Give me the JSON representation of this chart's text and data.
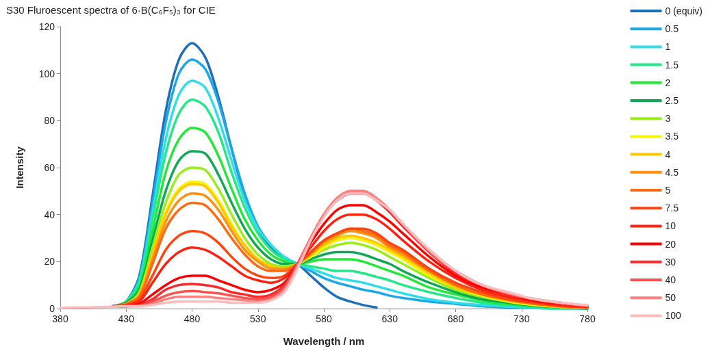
{
  "chart_data": {
    "type": "line",
    "title": "S30 Fluroescent spectra of 6·B(C₆F₅)₃ for CIE",
    "xlabel": "Wavelength / nm",
    "ylabel": "Intensity",
    "x": [
      380,
      400,
      420,
      430,
      440,
      450,
      460,
      470,
      480,
      490,
      500,
      510,
      520,
      530,
      540,
      550,
      560,
      570,
      580,
      590,
      600,
      610,
      620,
      630,
      640,
      660,
      680,
      700,
      720,
      740,
      760,
      780
    ],
    "xlim": [
      380,
      780
    ],
    "xticks": [
      380,
      430,
      480,
      530,
      580,
      630,
      680,
      730,
      780
    ],
    "ylim": [
      0,
      120
    ],
    "yticks": [
      0,
      20,
      40,
      60,
      80,
      100,
      120
    ],
    "legend": "right",
    "marker": "none",
    "line_style": "solid",
    "series": [
      {
        "name": "0 (equiv)",
        "color": "#1f6fb8",
        "values": [
          null,
          null,
          1,
          3,
          14,
          48,
          84,
          106,
          113,
          107,
          90,
          68,
          48,
          34,
          26,
          21,
          19,
          14,
          9,
          5,
          3,
          1.5,
          0.5,
          null,
          null,
          null,
          null,
          null,
          null,
          null,
          null,
          null
        ]
      },
      {
        "name": "0.5",
        "color": "#1ca8e8",
        "values": [
          null,
          null,
          1,
          3,
          13,
          45,
          79,
          100,
          106,
          102,
          88,
          68,
          49,
          35,
          27,
          22,
          19,
          16,
          13,
          11,
          9.5,
          8,
          7,
          5.5,
          4.5,
          3,
          2,
          1,
          0.5,
          0.2,
          0,
          0
        ]
      },
      {
        "name": "1",
        "color": "#30dde8",
        "values": [
          null,
          null,
          1,
          3,
          12,
          41,
          72,
          91,
          97,
          94,
          81,
          63,
          46,
          34,
          27,
          22,
          19,
          17,
          15,
          13,
          12,
          11,
          9.5,
          8,
          6.5,
          4,
          2.5,
          1.5,
          0.8,
          0.3,
          0,
          0
        ]
      },
      {
        "name": "1.5",
        "color": "#22e888",
        "values": [
          null,
          null,
          1,
          3,
          11,
          38,
          66,
          83,
          89,
          86,
          75,
          58,
          43,
          32,
          25,
          21,
          19,
          18,
          17,
          16,
          16,
          15,
          13.5,
          12,
          10,
          7,
          4.5,
          2.5,
          1.5,
          0.8,
          0.3,
          0
        ]
      },
      {
        "name": "2",
        "color": "#22e838",
        "values": [
          null,
          null,
          1,
          2.5,
          9,
          33,
          58,
          72,
          77,
          75,
          65,
          51,
          38,
          29,
          23,
          20,
          19,
          20,
          21,
          21,
          21,
          20,
          18,
          16,
          14,
          9,
          6,
          3.5,
          2,
          1,
          0.5,
          0
        ]
      },
      {
        "name": "2.5",
        "color": "#10a855",
        "values": [
          null,
          null,
          1,
          2.5,
          8,
          29,
          50,
          63,
          67,
          66,
          57,
          45,
          34,
          26,
          21,
          19,
          19,
          21,
          23,
          24,
          24,
          23,
          21,
          19,
          16,
          11,
          7,
          4,
          2.5,
          1.2,
          0.5,
          0
        ]
      },
      {
        "name": "3",
        "color": "#98ee18",
        "values": [
          null,
          null,
          1,
          2,
          7,
          26,
          45,
          57,
          60,
          59,
          51,
          40,
          30,
          23,
          19,
          18,
          19,
          22,
          25,
          27,
          28,
          27,
          25,
          22,
          19,
          13,
          8,
          5,
          3,
          1.5,
          0.6,
          0.2
        ]
      },
      {
        "name": "3.5",
        "color": "#f5f50a",
        "values": [
          null,
          null,
          1,
          2,
          6,
          23,
          41,
          51,
          54,
          53,
          46,
          36,
          27,
          21,
          18,
          17,
          19,
          22,
          26,
          29,
          30,
          29,
          27,
          24,
          21,
          14,
          9,
          5.5,
          3,
          1.5,
          0.7,
          0.2
        ]
      },
      {
        "name": "4",
        "color": "#ffc800",
        "values": [
          null,
          null,
          1,
          2,
          6,
          23,
          40,
          50,
          53,
          52,
          45,
          35,
          27,
          21,
          18,
          17,
          19,
          23,
          27,
          30,
          31,
          30,
          28,
          25,
          22,
          15,
          9,
          6,
          3.5,
          2,
          0.8,
          0.3
        ]
      },
      {
        "name": "4.5",
        "color": "#ff9010",
        "values": [
          null,
          null,
          1,
          2,
          5.5,
          21,
          37,
          46,
          49,
          48,
          42,
          33,
          25,
          20,
          17,
          17,
          19,
          23,
          28,
          31,
          33,
          32,
          30,
          26,
          23,
          16,
          10,
          6,
          3.5,
          2,
          0.8,
          0.3
        ]
      },
      {
        "name": "5",
        "color": "#ff6a10",
        "values": [
          null,
          null,
          1,
          2,
          5,
          19,
          34,
          42,
          45,
          44,
          38,
          30,
          23,
          18,
          16,
          16,
          19,
          24,
          29,
          32,
          34,
          33,
          31,
          27,
          24,
          16,
          10,
          6,
          4,
          2,
          1,
          0.4
        ]
      },
      {
        "name": "7.5",
        "color": "#ff4410",
        "values": [
          null,
          null,
          1,
          1.5,
          4,
          14,
          25,
          31,
          33,
          32,
          28,
          22,
          17,
          14,
          13,
          14,
          19,
          24,
          29,
          32,
          34,
          34,
          32,
          28,
          25,
          17,
          11,
          7,
          4,
          2.5,
          1.2,
          0.5
        ]
      },
      {
        "name": "10",
        "color": "#ff2010",
        "values": [
          null,
          null,
          1,
          1.5,
          3,
          11,
          19,
          24,
          26,
          25,
          22,
          18,
          14,
          12,
          11,
          13,
          19,
          26,
          33,
          38,
          40,
          40,
          38,
          34,
          29,
          20,
          13,
          8,
          5,
          3,
          1.5,
          0.8
        ]
      },
      {
        "name": "20",
        "color": "#ff0000",
        "values": [
          null,
          null,
          0.8,
          1,
          2,
          6,
          10,
          13,
          14,
          14,
          12,
          10,
          8,
          7,
          8,
          11,
          19,
          28,
          36,
          42,
          44,
          44,
          41,
          37,
          32,
          22,
          14,
          9,
          6,
          3.5,
          2,
          1
        ]
      },
      {
        "name": "30",
        "color": "#ff2828",
        "values": [
          null,
          null,
          0.8,
          1,
          1.5,
          4,
          8,
          10,
          10.5,
          10,
          9,
          7,
          6,
          5,
          6,
          10,
          19,
          30,
          40,
          46,
          49,
          49,
          46,
          41,
          35,
          24,
          15,
          10,
          6,
          4,
          2,
          1
        ]
      },
      {
        "name": "40",
        "color": "#ff5050",
        "values": [
          null,
          null,
          0.8,
          1,
          1.2,
          3,
          5.5,
          7,
          7.5,
          7,
          6.5,
          5.5,
          4.5,
          4,
          5,
          9,
          19,
          30,
          40,
          47,
          50,
          50,
          47,
          42,
          36,
          24,
          16,
          10,
          6.5,
          4,
          2.5,
          1.2
        ]
      },
      {
        "name": "50",
        "color": "#ff8080",
        "values": [
          null,
          null,
          0.8,
          1,
          1,
          2,
          4,
          5,
          5,
          5,
          4.5,
          4,
          3.5,
          3,
          4,
          8,
          18,
          30,
          40,
          47,
          50,
          50,
          47,
          42,
          36,
          25,
          16,
          10,
          6.5,
          4,
          2.5,
          1.2
        ]
      },
      {
        "name": "100",
        "color": "#ffbcbc",
        "values": [
          0.3,
          0.5,
          0.8,
          1,
          1,
          1.5,
          2.5,
          3,
          3,
          3,
          3,
          2.5,
          2.5,
          2.5,
          3.5,
          7,
          17,
          29,
          39,
          46,
          49,
          49,
          46,
          42,
          36,
          25,
          16,
          10,
          7,
          4,
          2.5,
          1.5
        ]
      }
    ]
  }
}
